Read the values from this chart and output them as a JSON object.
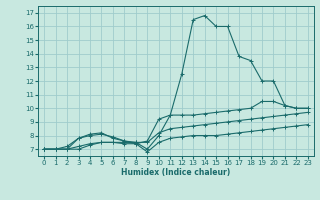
{
  "bg_color": "#c8e8e0",
  "grid_color": "#a0cccc",
  "line_color": "#1a6b6b",
  "xlabel": "Humidex (Indice chaleur)",
  "xlim": [
    -0.5,
    23.5
  ],
  "ylim": [
    6.5,
    17.5
  ],
  "xticks": [
    0,
    1,
    2,
    3,
    4,
    5,
    6,
    7,
    8,
    9,
    10,
    11,
    12,
    13,
    14,
    15,
    16,
    17,
    18,
    19,
    20,
    21,
    22,
    23
  ],
  "yticks": [
    7,
    8,
    9,
    10,
    11,
    12,
    13,
    14,
    15,
    16,
    17
  ],
  "series": [
    {
      "x": [
        0,
        1,
        2,
        3,
        4,
        5,
        6,
        7,
        8,
        9,
        10,
        11,
        12,
        13,
        14,
        15,
        16,
        17,
        18,
        19,
        20,
        21,
        22,
        23
      ],
      "y": [
        7.0,
        7.0,
        7.2,
        7.8,
        8.1,
        8.2,
        7.8,
        7.6,
        7.5,
        7.0,
        8.0,
        9.5,
        12.5,
        16.5,
        16.8,
        16.0,
        16.0,
        13.8,
        13.5,
        12.0,
        12.0,
        10.2,
        10.0,
        10.0
      ]
    },
    {
      "x": [
        0,
        1,
        2,
        3,
        4,
        5,
        6,
        7,
        8,
        9,
        10,
        11,
        12,
        13,
        14,
        15,
        16,
        17,
        18,
        19,
        20,
        21,
        22,
        23
      ],
      "y": [
        7.0,
        7.0,
        7.0,
        7.8,
        8.0,
        8.1,
        7.9,
        7.6,
        7.4,
        7.6,
        9.2,
        9.5,
        9.5,
        9.5,
        9.6,
        9.7,
        9.8,
        9.9,
        10.0,
        10.5,
        10.5,
        10.2,
        10.0,
        10.0
      ]
    },
    {
      "x": [
        0,
        1,
        2,
        3,
        4,
        5,
        6,
        7,
        8,
        9,
        10,
        11,
        12,
        13,
        14,
        15,
        16,
        17,
        18,
        19,
        20,
        21,
        22,
        23
      ],
      "y": [
        7.0,
        7.0,
        7.0,
        7.2,
        7.4,
        7.5,
        7.5,
        7.5,
        7.5,
        7.5,
        8.2,
        8.5,
        8.6,
        8.7,
        8.8,
        8.9,
        9.0,
        9.1,
        9.2,
        9.3,
        9.4,
        9.5,
        9.6,
        9.7
      ]
    },
    {
      "x": [
        0,
        1,
        2,
        3,
        4,
        5,
        6,
        7,
        8,
        9,
        10,
        11,
        12,
        13,
        14,
        15,
        16,
        17,
        18,
        19,
        20,
        21,
        22,
        23
      ],
      "y": [
        7.0,
        7.0,
        7.0,
        7.0,
        7.3,
        7.5,
        7.5,
        7.4,
        7.4,
        6.8,
        7.5,
        7.8,
        7.9,
        8.0,
        8.0,
        8.0,
        8.1,
        8.2,
        8.3,
        8.4,
        8.5,
        8.6,
        8.7,
        8.8
      ]
    }
  ]
}
